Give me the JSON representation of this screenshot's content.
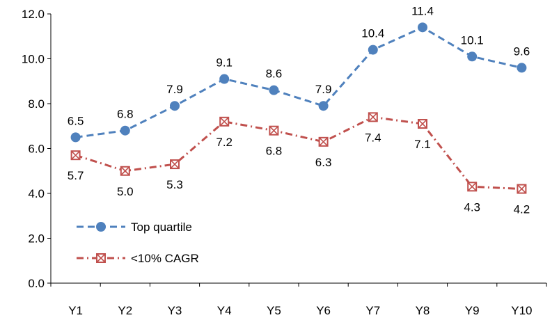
{
  "chart_data": {
    "type": "line",
    "title": "",
    "xlabel": "",
    "ylabel": "",
    "categories": [
      "Y1",
      "Y2",
      "Y3",
      "Y4",
      "Y5",
      "Y6",
      "Y7",
      "Y8",
      "Y9",
      "Y10"
    ],
    "ylim": [
      0,
      12
    ],
    "y_ticks": [
      "0.0",
      "2.0",
      "4.0",
      "6.0",
      "8.0",
      "10.0",
      "12.0"
    ],
    "grid": false,
    "legend_position": "bottom-left",
    "series": [
      {
        "name": "Top quartile",
        "values": [
          6.5,
          6.8,
          7.9,
          9.1,
          8.6,
          7.9,
          10.4,
          11.4,
          10.1,
          9.6
        ],
        "labels": [
          "6.5",
          "6.8",
          "7.9",
          "9.1",
          "8.6",
          "7.9",
          "10.4",
          "11.4",
          "10.1",
          "9.6"
        ],
        "color": "#4f81bd",
        "line_style": "dashed",
        "marker": "circle",
        "label_position": "above"
      },
      {
        "name": "<10% CAGR",
        "values": [
          5.7,
          5.0,
          5.3,
          7.2,
          6.8,
          6.3,
          7.4,
          7.1,
          4.3,
          4.2
        ],
        "labels": [
          "5.7",
          "5.0",
          "5.3",
          "7.2",
          "6.8",
          "6.3",
          "7.4",
          "7.1",
          "4.3",
          "4.2"
        ],
        "color": "#c0504d",
        "line_style": "dash-dot",
        "marker": "square-x",
        "label_position": "below"
      }
    ]
  }
}
